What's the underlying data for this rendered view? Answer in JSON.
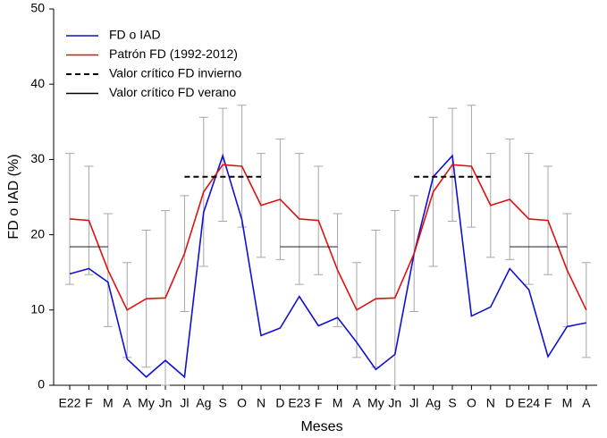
{
  "chart_data": {
    "type": "line",
    "x_label": "Meses",
    "y_label": "FD o IAD (%)",
    "categories": [
      "E22",
      "F",
      "M",
      "A",
      "My",
      "Jn",
      "Jl",
      "Ag",
      "S",
      "O",
      "N",
      "D",
      "E23",
      "F",
      "M",
      "A",
      "My",
      "Jn",
      "Jl",
      "Ag",
      "S",
      "O",
      "N",
      "D",
      "E24",
      "F",
      "M",
      "A"
    ],
    "ylim": [
      0,
      50
    ],
    "yticks": [
      0,
      10,
      20,
      30,
      40,
      50
    ],
    "legend_position": "upper-left",
    "error_color": "#a6a6a6",
    "series": [
      {
        "name": "FD o IAD",
        "color": "#1010d0",
        "style": "solid",
        "values": [
          14.8,
          15.5,
          13.7,
          3.5,
          1.1,
          3.3,
          1.1,
          23,
          30.5,
          22,
          6.6,
          7.6,
          11.8,
          7.9,
          9,
          5.7,
          2.1,
          4.1,
          17.5,
          27.7,
          30.5,
          9.2,
          10.4,
          15.5,
          12.7,
          3.8,
          7.8,
          8.3
        ]
      },
      {
        "name": "Patrón FD (1992-2012)",
        "color": "#e01010",
        "style": "solid",
        "values": [
          22.1,
          21.9,
          15.3,
          10,
          11.5,
          11.6,
          17.5,
          25.7,
          29.3,
          29.1,
          23.9,
          24.7,
          22.1,
          21.9,
          15.3,
          10,
          11.5,
          11.6,
          17.5,
          25.7,
          29.3,
          29.1,
          23.9,
          24.7,
          22.1,
          21.9,
          15.3,
          10
        ],
        "errors": [
          8.7,
          7.2,
          7.5,
          6.3,
          9.1,
          11.6,
          7.7,
          9.9,
          7.5,
          8.1,
          6.9,
          8,
          8.7,
          7.2,
          7.5,
          6.3,
          9.1,
          11.6,
          7.7,
          9.9,
          7.5,
          8.1,
          6.9,
          8,
          8.7,
          7.2,
          7.5,
          6.3
        ]
      },
      {
        "name": "Valor crítico FD invierno",
        "color": "#000000",
        "style": "dash",
        "values": [
          null,
          null,
          null,
          null,
          null,
          null,
          27.7,
          27.7,
          27.7,
          27.7,
          27.7,
          null,
          null,
          null,
          null,
          null,
          null,
          null,
          27.7,
          27.7,
          27.7,
          27.7,
          27.7,
          null,
          null,
          null,
          null,
          null
        ]
      },
      {
        "name": "Valor crítico FD verano",
        "color": "#000000",
        "style": "solid",
        "values": [
          18.4,
          18.4,
          18.4,
          null,
          null,
          null,
          null,
          null,
          null,
          null,
          null,
          18.4,
          18.4,
          18.4,
          18.4,
          null,
          null,
          null,
          null,
          null,
          null,
          null,
          null,
          18.4,
          18.4,
          18.4,
          18.4,
          null
        ]
      }
    ]
  }
}
